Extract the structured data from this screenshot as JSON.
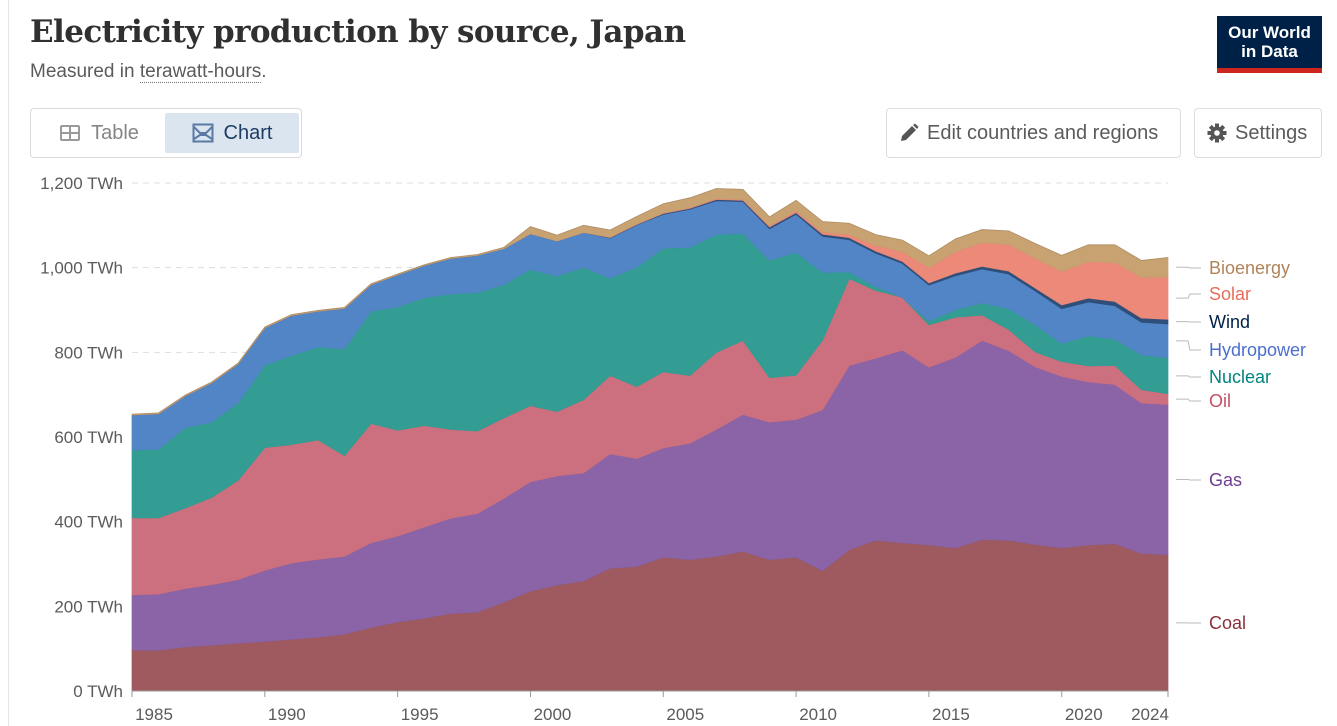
{
  "header": {
    "title": "Electricity production by source, Japan",
    "subtitle_prefix": "Measured in ",
    "subtitle_unit": "terawatt-hours",
    "subtitle_suffix": ".",
    "logo_line1": "Our World",
    "logo_line2": "in Data"
  },
  "toolbar": {
    "tab_table": "Table",
    "tab_chart": "Chart",
    "active_tab": "Chart",
    "edit_button": "Edit countries and regions",
    "settings_button": "Settings"
  },
  "colors": {
    "logo_bg": "#002147",
    "logo_accent": "#ce261e",
    "active_tab_bg": "#dbe5f0"
  },
  "chart_data": {
    "type": "area",
    "stacked": true,
    "title": "Electricity production by source, Japan",
    "subtitle": "Measured in terawatt-hours.",
    "xlabel": "",
    "ylabel": "",
    "unit": "TWh",
    "ylim": [
      0,
      1200
    ],
    "yticks": [
      0,
      200,
      400,
      600,
      800,
      1000,
      1200
    ],
    "ytick_labels": [
      "0 TWh",
      "200 TWh",
      "400 TWh",
      "600 TWh",
      "800 TWh",
      "1,000 TWh",
      "1,200 TWh"
    ],
    "xlim": [
      1985,
      2024
    ],
    "xticks": [
      1985,
      1990,
      1995,
      2000,
      2005,
      2010,
      2015,
      2020,
      2024
    ],
    "grid": "horizontal-dashed",
    "legend": "right",
    "x": [
      1985,
      1986,
      1987,
      1988,
      1989,
      1990,
      1991,
      1992,
      1993,
      1994,
      1995,
      1996,
      1997,
      1998,
      1999,
      2000,
      2001,
      2002,
      2003,
      2004,
      2005,
      2006,
      2007,
      2008,
      2009,
      2010,
      2011,
      2012,
      2013,
      2014,
      2015,
      2016,
      2017,
      2018,
      2019,
      2020,
      2021,
      2022,
      2023,
      2024
    ],
    "series": [
      {
        "name": "Coal",
        "color": "#9e5a5f",
        "label_color": "#883039",
        "values": [
          97,
          96,
          104,
          108,
          113,
          117,
          122,
          127,
          134,
          150,
          163,
          172,
          183,
          186,
          210,
          236,
          250,
          260,
          290,
          294,
          316,
          310,
          318,
          330,
          310,
          316,
          284,
          334,
          356,
          350,
          345,
          338,
          358,
          356,
          346,
          338,
          345,
          348,
          325,
          322
        ]
      },
      {
        "name": "Gas",
        "color": "#8a64a6",
        "label_color": "#6d3e91",
        "values": [
          130,
          133,
          138,
          143,
          150,
          168,
          180,
          184,
          184,
          200,
          203,
          215,
          225,
          233,
          245,
          258,
          258,
          255,
          270,
          255,
          258,
          275,
          300,
          323,
          325,
          325,
          380,
          435,
          430,
          455,
          420,
          450,
          470,
          448,
          420,
          405,
          385,
          376,
          355,
          355
        ]
      },
      {
        "name": "Oil",
        "color": "#cc707f",
        "label_color": "#c15065",
        "values": [
          182,
          180,
          190,
          206,
          235,
          290,
          280,
          282,
          238,
          282,
          250,
          240,
          210,
          195,
          190,
          180,
          152,
          173,
          185,
          170,
          180,
          160,
          182,
          175,
          105,
          105,
          165,
          205,
          160,
          125,
          100,
          95,
          60,
          50,
          35,
          35,
          38,
          45,
          32,
          25
        ]
      },
      {
        "name": "Nuclear",
        "color": "#339d93",
        "label_color": "#00847e",
        "values": [
          160,
          162,
          190,
          178,
          183,
          195,
          210,
          220,
          252,
          265,
          291,
          302,
          320,
          327,
          315,
          322,
          320,
          313,
          230,
          282,
          292,
          303,
          278,
          253,
          277,
          290,
          160,
          16,
          9,
          0,
          9,
          18,
          29,
          49,
          64,
          43,
          71,
          62,
          82,
          85
        ]
      },
      {
        "name": "Hydropower",
        "color": "#5185c6",
        "label_color": "#4c6fcf",
        "values": [
          83,
          84,
          75,
          93,
          92,
          88,
          95,
          84,
          96,
          63,
          76,
          76,
          84,
          88,
          85,
          84,
          83,
          82,
          95,
          100,
          80,
          90,
          80,
          75,
          75,
          90,
          85,
          76,
          79,
          80,
          85,
          80,
          80,
          82,
          80,
          82,
          80,
          79,
          77,
          80
        ]
      },
      {
        "name": "Wind",
        "color": "#2f4f7a",
        "label_color": "#002147",
        "values": [
          0,
          0,
          0,
          0,
          0,
          0,
          0,
          0,
          0,
          0,
          0,
          0,
          0,
          0,
          0,
          0,
          0,
          0,
          1,
          1,
          2,
          2,
          3,
          3,
          4,
          4,
          5,
          5,
          5,
          5,
          5,
          6,
          6,
          7,
          7,
          9,
          9,
          10,
          10,
          11
        ]
      },
      {
        "name": "Solar",
        "color": "#ec8979",
        "label_color": "#e56e5a",
        "values": [
          0,
          0,
          0,
          0,
          0,
          0,
          0,
          0,
          0,
          0,
          0,
          0,
          0,
          0,
          0,
          0,
          0,
          0,
          1,
          1,
          1,
          2,
          2,
          2,
          3,
          4,
          5,
          7,
          13,
          23,
          36,
          51,
          56,
          63,
          70,
          79,
          86,
          92,
          96,
          100
        ]
      },
      {
        "name": "Bioenergy",
        "color": "#c9a271",
        "label_color": "#b0845a",
        "values": [
          2,
          2,
          2,
          2,
          2,
          2,
          2,
          2,
          2,
          2,
          2,
          2,
          2,
          2,
          3,
          17,
          14,
          17,
          17,
          18,
          22,
          23,
          24,
          24,
          21,
          25,
          25,
          27,
          26,
          27,
          28,
          30,
          31,
          32,
          35,
          38,
          40,
          42,
          40,
          46
        ]
      }
    ]
  }
}
